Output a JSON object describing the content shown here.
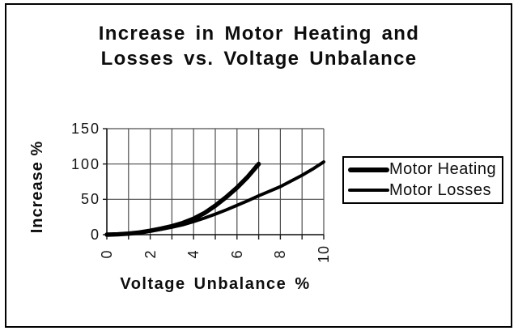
{
  "title": {
    "line1": "Increase in Motor Heating and",
    "line2": "Losses vs. Voltage Unbalance"
  },
  "axes": {
    "y_label": "Increase %",
    "x_label": "Voltage Unbalance %",
    "y_ticks": [
      "150",
      "100",
      "50",
      "0"
    ],
    "x_ticks": [
      "0",
      "2",
      "4",
      "6",
      "8",
      "10"
    ]
  },
  "legend": [
    {
      "label": "Motor Heating"
    },
    {
      "label": "Motor Losses"
    }
  ],
  "chart_data": {
    "type": "line",
    "title": "Increase in Motor Heating and Losses vs. Voltage Unbalance",
    "xlabel": "Voltage Unbalance %",
    "ylabel": "Increase %",
    "xlim": [
      0,
      10
    ],
    "ylim": [
      0,
      150
    ],
    "x_major_tick_step": 2,
    "x_grid_step": 1,
    "y_grid_step": 50,
    "grid": true,
    "legend_position": "right-outside",
    "series": [
      {
        "name": "Motor Heating",
        "stroke_width": 5.5,
        "x": [
          0,
          0.5,
          1,
          1.5,
          2,
          2.5,
          3,
          3.5,
          4,
          4.5,
          5,
          5.5,
          6,
          6.5,
          7
        ],
        "y": [
          0,
          0.5,
          1.5,
          3,
          5.5,
          8.5,
          12,
          16.5,
          22.5,
          30.5,
          41,
          53,
          66.5,
          82,
          100
        ]
      },
      {
        "name": "Motor Losses",
        "stroke_width": 4,
        "x": [
          0,
          0.5,
          1,
          1.5,
          2,
          2.5,
          3,
          3.5,
          4,
          4.5,
          5,
          5.5,
          6,
          6.5,
          7,
          7.5,
          8,
          8.5,
          9,
          9.5,
          10
        ],
        "y": [
          0,
          0.5,
          1.5,
          3,
          5,
          7.5,
          10.5,
          14,
          18.5,
          23.5,
          29,
          35,
          41.5,
          48,
          55,
          61.5,
          68,
          76,
          84,
          93,
          103
        ]
      }
    ],
    "colors": {
      "line": "#000000",
      "grid": "#4d4d4d",
      "axis": "#1a1a1a"
    }
  }
}
